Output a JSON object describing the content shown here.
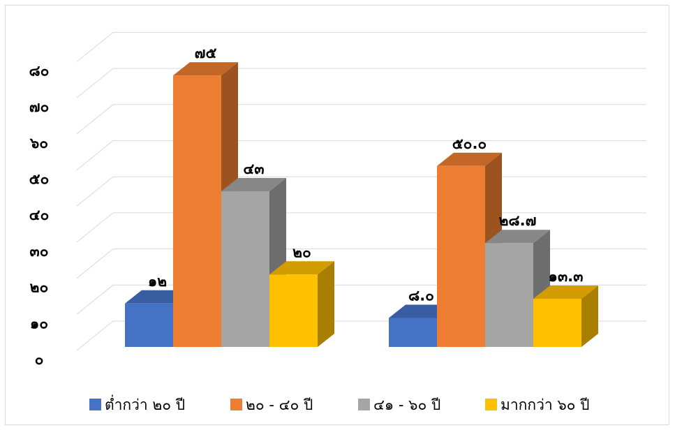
{
  "chart_data": {
    "type": "bar",
    "style": "3d-clustered-column",
    "title": "",
    "xlabel": "",
    "ylabel": "",
    "ylim": [
      0,
      80
    ],
    "y_tick_step": 10,
    "y_tick_labels": [
      "๐",
      "๑๐",
      "๒๐",
      "๓๐",
      "๔๐",
      "๕๐",
      "๖๐",
      "๗๐",
      "๘๐"
    ],
    "categories": [
      "",
      ""
    ],
    "grid": true,
    "legend_position": "bottom",
    "series": [
      {
        "name": "ต่ำกว่า ๒๐ ปี",
        "color": "#4472c4",
        "values": [
          12,
          8.0
        ],
        "labels": [
          "๑๒",
          "๘.๐"
        ]
      },
      {
        "name": "๒๐ - ๔๐ ปี",
        "color": "#ed7d31",
        "values": [
          75,
          50.0
        ],
        "labels": [
          "๗๕",
          "๕๐.๐"
        ]
      },
      {
        "name": "๔๑ - ๖๐ ปี",
        "color": "#a5a5a5",
        "values": [
          43,
          28.7
        ],
        "labels": [
          "๔๓",
          "๒๘.๗"
        ]
      },
      {
        "name": "มากกว่า ๖๐ ปี",
        "color": "#ffc000",
        "values": [
          20,
          13.3
        ],
        "labels": [
          "๒๐",
          "๑๓.๓"
        ]
      }
    ]
  }
}
